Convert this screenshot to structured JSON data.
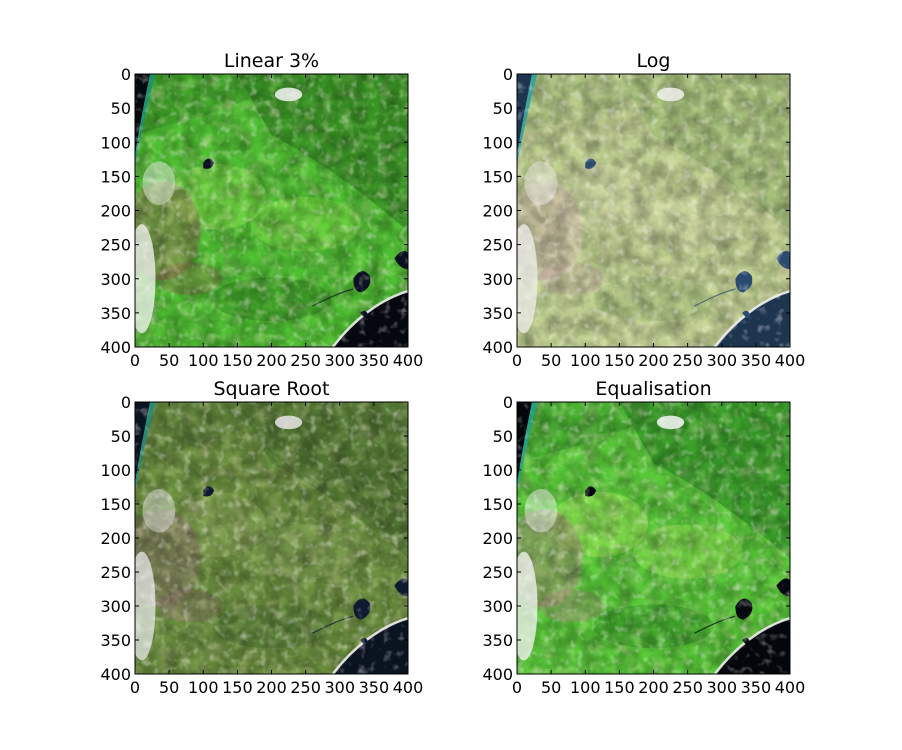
{
  "figure": {
    "panels": [
      {
        "title": "Linear 3%",
        "style": "linear",
        "x_ticks": [
          "0",
          "50",
          "100",
          "150",
          "200",
          "250",
          "300",
          "350",
          "400"
        ],
        "y_ticks": [
          "0",
          "50",
          "100",
          "150",
          "200",
          "250",
          "300",
          "350",
          "400"
        ]
      },
      {
        "title": "Log",
        "style": "log",
        "x_ticks": [
          "0",
          "50",
          "100",
          "150",
          "200",
          "250",
          "300",
          "350",
          "400"
        ],
        "y_ticks": [
          "0",
          "50",
          "100",
          "150",
          "200",
          "250",
          "300",
          "350",
          "400"
        ]
      },
      {
        "title": "Square Root",
        "style": "sqrt",
        "x_ticks": [
          "0",
          "50",
          "100",
          "150",
          "200",
          "250",
          "300",
          "350",
          "400"
        ],
        "y_ticks": [
          "0",
          "50",
          "100",
          "150",
          "200",
          "250",
          "300",
          "350",
          "400"
        ]
      },
      {
        "title": "Equalisation",
        "style": "equalisation",
        "x_ticks": [
          "0",
          "50",
          "100",
          "150",
          "200",
          "250",
          "300",
          "350",
          "400"
        ],
        "y_ticks": [
          "0",
          "50",
          "100",
          "150",
          "200",
          "250",
          "300",
          "350",
          "400"
        ]
      }
    ],
    "colors": {
      "linear": {
        "veg": "#4fbf32",
        "veg_dark": "#2f7f1f",
        "veg_light": "#84e04a",
        "soil": "#a06a5a",
        "cloud": "#f4f4f4",
        "water": "#0a1020",
        "sea": "#05080f",
        "coast": "#1a8f7a"
      },
      "log": {
        "veg": "#bfcf90",
        "veg_dark": "#98b870",
        "veg_light": "#d4dca8",
        "soil": "#c8a8a8",
        "cloud": "#f2f2ee",
        "water": "#2a4a70",
        "sea": "#1e3550",
        "coast": "#30a0a0"
      },
      "sqrt": {
        "veg": "#6a8e3e",
        "veg_dark": "#4a7030",
        "veg_light": "#8aa85a",
        "soil": "#907070",
        "cloud": "#e8e8e8",
        "water": "#0e1a30",
        "sea": "#0a1320",
        "coast": "#208a80"
      },
      "equalisation": {
        "veg": "#58c838",
        "veg_dark": "#2c8a24",
        "veg_light": "#9ee85a",
        "soil": "#b08080",
        "cloud": "#f6f6f6",
        "water": "#05080f",
        "sea": "#03060b",
        "coast": "#20a090"
      }
    }
  }
}
